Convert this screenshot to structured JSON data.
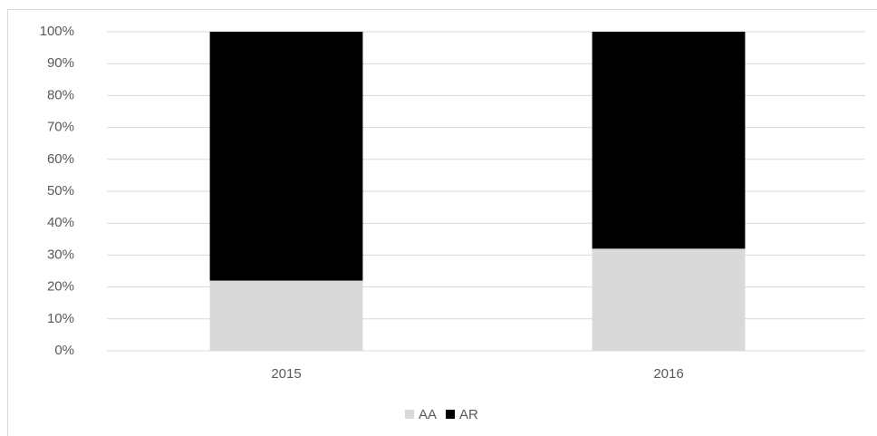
{
  "chart_data": {
    "type": "stacked_bar",
    "categories": [
      "2015",
      "2016"
    ],
    "series": [
      {
        "name": "AA",
        "color": "#d9d9d9",
        "values": [
          22,
          32
        ]
      },
      {
        "name": "AR",
        "color": "#000000",
        "values": [
          78,
          68
        ]
      }
    ],
    "ylim": [
      0,
      100
    ],
    "yticks": [
      {
        "value": 0,
        "label": "0%"
      },
      {
        "value": 10,
        "label": "10%"
      },
      {
        "value": 20,
        "label": "20%"
      },
      {
        "value": 30,
        "label": "30%"
      },
      {
        "value": 40,
        "label": "40%"
      },
      {
        "value": 50,
        "label": "50%"
      },
      {
        "value": 60,
        "label": "60%"
      },
      {
        "value": 70,
        "label": "70%"
      },
      {
        "value": 80,
        "label": "80%"
      },
      {
        "value": 90,
        "label": "90%"
      },
      {
        "value": 100,
        "label": "100%"
      }
    ],
    "grid": true,
    "legend": "bottom"
  }
}
